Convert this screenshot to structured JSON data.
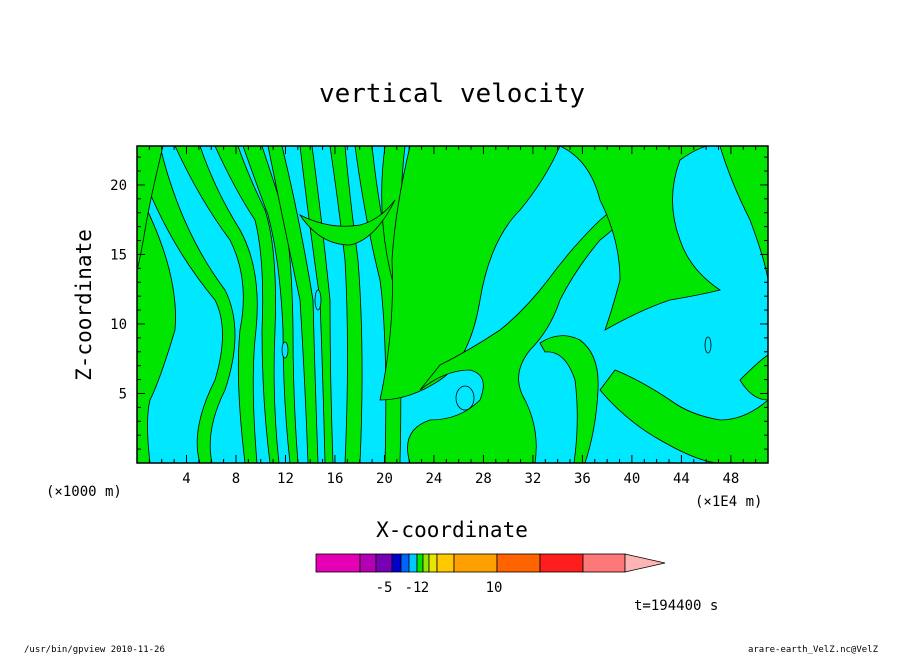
{
  "chart_data": {
    "type": "heatmap",
    "title": "vertical velocity",
    "xlabel": "X-coordinate",
    "ylabel": "Z-coordinate",
    "x_unit": "(×1E4 m)",
    "y_unit": "(×1000 m)",
    "xlim": [
      0,
      51
    ],
    "ylim": [
      0,
      22.8
    ],
    "x_ticks": [
      "4",
      "8",
      "12",
      "16",
      "20",
      "24",
      "28",
      "32",
      "36",
      "40",
      "44",
      "48"
    ],
    "y_ticks": [
      "5",
      "10",
      "15",
      "20"
    ],
    "x_tick_values": [
      4,
      8,
      12,
      16,
      20,
      24,
      28,
      32,
      36,
      40,
      44,
      48
    ],
    "y_tick_values": [
      5,
      10,
      15,
      20
    ],
    "field_colors": {
      "negative": "#00e8ff",
      "positive": "#00e600"
    },
    "colorbar": {
      "colors": [
        "#e600b4",
        "#b400b4",
        "#7800b4",
        "#0000c8",
        "#0064ff",
        "#00c8ff",
        "#00e600",
        "#96e600",
        "#e6e600",
        "#ffc800",
        "#ffa000",
        "#ff6400",
        "#ff1e1e",
        "#ff7878",
        "#ffb4b4"
      ],
      "labels": [
        "-5",
        "-1",
        "2",
        "10"
      ]
    },
    "time_label": "t=194400 s"
  },
  "footer": {
    "left": "/usr/bin/gpview   2010-11-26",
    "right": "arare-earth_VelZ.nc@VelZ"
  }
}
